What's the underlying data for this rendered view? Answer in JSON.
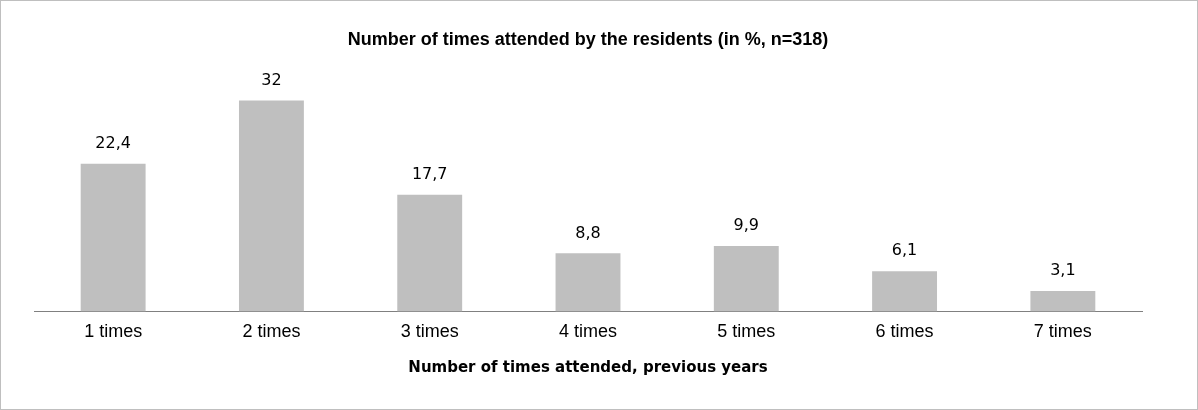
{
  "chart_data": {
    "type": "bar",
    "title": "Number of times attended by the residents (in %, n=318)",
    "xlabel": "Number of times attended, previous years",
    "categories": [
      "1 times",
      "2 times",
      "3 times",
      "4 times",
      "5 times",
      "6 times",
      "7 times"
    ],
    "values": [
      22.4,
      32,
      17.7,
      8.8,
      9.9,
      6.1,
      3.1
    ],
    "value_labels": [
      "22,4",
      "32",
      "17,7",
      "8,8",
      "9,9",
      "6,1",
      "3,1"
    ],
    "color": "#bfbfbf",
    "grid": false,
    "legend": false
  }
}
